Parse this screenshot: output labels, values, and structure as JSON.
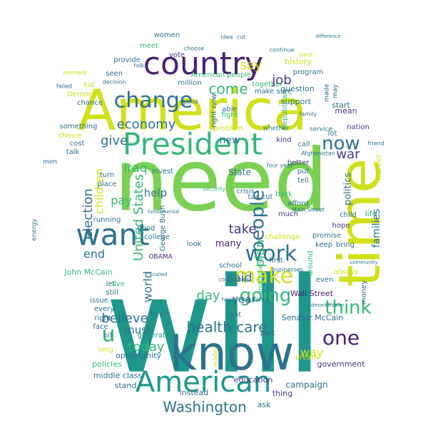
{
  "palette": {
    "purple": "#482173",
    "yellow": "#d0e11c",
    "green": "#7ad151",
    "teal": "#1f968b",
    "blue": "#2c728e",
    "mint": "#35b779",
    "navy": "#443983",
    "lime": "#a5db36"
  },
  "words": [
    {
      "text": "will",
      "color": "#1f968b"
    },
    {
      "text": "need",
      "color": "#7ad151"
    },
    {
      "text": "America",
      "color": "#d0e11c"
    },
    {
      "text": "know",
      "color": "#2c728e"
    },
    {
      "text": "country",
      "color": "#482173"
    },
    {
      "text": "time",
      "color": "#d0e11c"
    },
    {
      "text": "President",
      "color": "#35b779"
    },
    {
      "text": "American",
      "color": "#1f968b"
    },
    {
      "text": "want",
      "color": "#2c728e"
    },
    {
      "text": "make",
      "color": "#d0e11c"
    },
    {
      "text": "work",
      "color": "#2c728e"
    },
    {
      "text": "change",
      "color": "#2c728e"
    },
    {
      "text": "going",
      "color": "#35b779"
    },
    {
      "text": "think",
      "color": "#35b779"
    },
    {
      "text": "now",
      "color": "#2c728e"
    },
    {
      "text": "one",
      "color": "#482173"
    },
    {
      "text": "people",
      "color": "#2c728e"
    },
    {
      "text": "economy",
      "color": "#2c728e"
    },
    {
      "text": "come",
      "color": "#35b779"
    },
    {
      "text": "job",
      "color": "#443983"
    },
    {
      "text": "say",
      "color": "#d0e11c"
    },
    {
      "text": "health care",
      "color": "#2c728e"
    },
    {
      "text": "Washington",
      "color": "#2c728e"
    },
    {
      "text": "United States",
      "color": "#35b779"
    },
    {
      "text": "believe",
      "color": "#2c728e"
    },
    {
      "text": "today",
      "color": "#35b779"
    },
    {
      "text": "give",
      "color": "#2c728e"
    },
    {
      "text": "take",
      "color": "#443983"
    },
    {
      "text": "plan",
      "color": "#35b779"
    },
    {
      "text": "day",
      "color": "#35b779"
    },
    {
      "text": "war",
      "color": "#443983"
    },
    {
      "text": "Iraq",
      "color": "#35b779"
    },
    {
      "text": "election",
      "color": "#2c728e"
    },
    {
      "text": "children",
      "color": "#d0e11c"
    },
    {
      "text": "said",
      "color": "#2c728e"
    },
    {
      "text": "u",
      "color": "#35b779"
    },
    {
      "text": "help",
      "color": "#2c728e"
    },
    {
      "text": "pay",
      "color": "#35b779"
    },
    {
      "text": "end",
      "color": "#2c728e"
    },
    {
      "text": "world",
      "color": "#2c728e"
    },
    {
      "text": "way",
      "color": "#d0e11c"
    },
    {
      "text": "year",
      "color": "#2c728e"
    },
    {
      "text": "must",
      "color": "#2c728e"
    },
    {
      "text": "many",
      "color": "#482173"
    },
    {
      "text": "families",
      "color": "#2c728e"
    },
    {
      "text": "politics",
      "color": "#2c728e"
    },
    {
      "text": "Wall Street",
      "color": "#482173"
    },
    {
      "text": "John McCain",
      "color": "#35b779"
    },
    {
      "text": "Senator McCain",
      "color": "#2c728e"
    },
    {
      "text": "American people",
      "color": "#35b779"
    },
    {
      "text": "George Bush",
      "color": "#2c728e"
    },
    {
      "text": "middle class",
      "color": "#2c728e"
    },
    {
      "text": "policies",
      "color": "#35b779"
    },
    {
      "text": "campaign",
      "color": "#2c728e"
    },
    {
      "text": "education",
      "color": "#443983"
    },
    {
      "text": "government",
      "color": "#443983"
    },
    {
      "text": "opportunity",
      "color": "#2c728e"
    },
    {
      "text": "generation",
      "color": "#1f968b"
    },
    {
      "text": "instead",
      "color": "#2c728e"
    },
    {
      "text": "thing",
      "color": "#443983"
    },
    {
      "text": "stand",
      "color": "#2c728e"
    },
    {
      "text": "ask",
      "color": "#2c728e"
    },
    {
      "text": "mean",
      "color": "#443983"
    },
    {
      "text": "start",
      "color": "#2c728e"
    },
    {
      "text": "question",
      "color": "#2c728e"
    },
    {
      "text": "support",
      "color": "#2c728e"
    },
    {
      "text": "history",
      "color": "#d0e11c"
    },
    {
      "text": "program",
      "color": "#2c728e"
    },
    {
      "text": "together",
      "color": "#35b779"
    },
    {
      "text": "women",
      "color": "#2c728e"
    },
    {
      "text": "vote",
      "color": "#443983"
    },
    {
      "text": "meet",
      "color": "#35b779"
    },
    {
      "text": "kid",
      "color": "#d0e11c"
    },
    {
      "text": "seen",
      "color": "#2c728e"
    },
    {
      "text": "provide",
      "color": "#2c728e"
    },
    {
      "text": "million",
      "color": "#2c728e"
    },
    {
      "text": "Democrat",
      "color": "#d0e11c"
    },
    {
      "text": "chance",
      "color": "#2c728e"
    },
    {
      "text": "something",
      "color": "#2c728e"
    },
    {
      "text": "choice",
      "color": "#d0e11c"
    },
    {
      "text": "cost",
      "color": "#2c728e"
    },
    {
      "text": "talk",
      "color": "#2c728e"
    },
    {
      "text": "able",
      "color": "#2c728e"
    },
    {
      "text": "fight",
      "color": "#35b779"
    },
    {
      "text": "problem",
      "color": "#d0e11c"
    },
    {
      "text": "right now",
      "color": "#2c728e"
    },
    {
      "text": "make sure",
      "color": "#2c728e"
    },
    {
      "text": "Republican",
      "color": "#35b779"
    },
    {
      "text": "nation",
      "color": "#443983"
    },
    {
      "text": "lot",
      "color": "#2c728e"
    },
    {
      "text": "kind",
      "color": "#443983"
    },
    {
      "text": "call",
      "color": "#2c728e"
    },
    {
      "text": "better",
      "color": "#443983"
    },
    {
      "text": "put",
      "color": "#2c728e"
    },
    {
      "text": "tell",
      "color": "#2c728e"
    },
    {
      "text": "back",
      "color": "#35b779"
    },
    {
      "text": "afford",
      "color": "#2c728e"
    },
    {
      "text": "crisis",
      "color": "#2c728e"
    },
    {
      "text": "tax cut",
      "color": "#2c728e"
    },
    {
      "text": "much",
      "color": "#443983"
    },
    {
      "text": "challenge",
      "color": "#d0e11c"
    },
    {
      "text": "promise",
      "color": "#2c728e"
    },
    {
      "text": "keep",
      "color": "#2c728e"
    },
    {
      "text": "bring",
      "color": "#2c728e"
    },
    {
      "text": "hope",
      "color": "#443983"
    },
    {
      "text": "even",
      "color": "#2c728e"
    },
    {
      "text": "always",
      "color": "#d0e11c"
    },
    {
      "text": "first",
      "color": "#2c728e"
    },
    {
      "text": "got",
      "color": "#2c728e"
    },
    {
      "text": "school",
      "color": "#2c728e"
    },
    {
      "text": "around",
      "color": "#35b779"
    },
    {
      "text": "live",
      "color": "#35b779"
    },
    {
      "text": "still",
      "color": "#2c728e"
    },
    {
      "text": "let",
      "color": "#2c728e"
    },
    {
      "text": "issue",
      "color": "#2c728e"
    },
    {
      "text": "every",
      "color": "#2c728e"
    },
    {
      "text": "right",
      "color": "#2c728e"
    },
    {
      "text": "face",
      "color": "#2c728e"
    },
    {
      "text": "oil",
      "color": "#2c728e"
    },
    {
      "text": "long",
      "color": "#d0e11c"
    },
    {
      "text": "done",
      "color": "#2c728e"
    },
    {
      "text": "look",
      "color": "#2c728e"
    },
    {
      "text": "good",
      "color": "#2c728e"
    },
    {
      "text": "running",
      "color": "#2c728e"
    },
    {
      "text": "college",
      "color": "#2c728e"
    },
    {
      "text": "place",
      "color": "#2c728e"
    },
    {
      "text": "turn",
      "color": "#2c728e"
    },
    {
      "text": "invest",
      "color": "#2c728e"
    },
    {
      "text": "OBAMA",
      "color": "#482173"
    },
    {
      "text": "new",
      "color": "#2c728e"
    },
    {
      "text": "dream",
      "color": "#d0e11c"
    },
    {
      "text": "part",
      "color": "#2c728e"
    },
    {
      "text": "leader",
      "color": "#d0e11c"
    },
    {
      "text": "energy",
      "color": "#2c728e"
    },
    {
      "text": "men",
      "color": "#2c728e"
    },
    {
      "text": "worker",
      "color": "#d0e11c"
    },
    {
      "text": "life",
      "color": "#35b779"
    },
    {
      "text": "money",
      "color": "#2c728e"
    },
    {
      "text": "child",
      "color": "#2c728e"
    },
    {
      "text": "State",
      "color": "#2c728e"
    },
    {
      "text": "security",
      "color": "#35b779"
    },
    {
      "text": "understand",
      "color": "#35b779"
    },
    {
      "text": "Afghanistan",
      "color": "#2c728e"
    },
    {
      "text": "service",
      "color": "#2c728e"
    },
    {
      "text": "whether",
      "color": "#2c728e"
    },
    {
      "text": "made",
      "color": "#2c728e"
    },
    {
      "text": "may",
      "color": "#2c728e"
    },
    {
      "text": "family",
      "color": "#2c728e"
    },
    {
      "text": "four year",
      "color": "#2c728e"
    },
    {
      "text": "health insurance",
      "color": "#2c728e"
    },
    {
      "text": "companies",
      "color": "#2c728e"
    },
    {
      "text": "businesses",
      "color": "#2c728e"
    },
    {
      "text": "Main Street",
      "color": "#2c728e"
    },
    {
      "text": "Administration",
      "color": "#2c728e"
    },
    {
      "text": "community",
      "color": "#2c728e"
    },
    {
      "text": "friend",
      "color": "#2c728e"
    },
    {
      "text": "idea",
      "color": "#2c728e"
    },
    {
      "text": "cut",
      "color": "#2c728e"
    },
    {
      "text": "continue",
      "color": "#2c728e"
    },
    {
      "text": "hard",
      "color": "#d0e11c"
    },
    {
      "text": "folks",
      "color": "#2c728e"
    },
    {
      "text": "choose",
      "color": "#2c728e"
    },
    {
      "text": "moment",
      "color": "#d0e11c"
    },
    {
      "text": "failed",
      "color": "#2c728e"
    },
    {
      "text": "decision",
      "color": "#2c728e"
    },
    {
      "text": "spend",
      "color": "#2c728e"
    },
    {
      "text": "fundamental",
      "color": "#2c728e"
    },
    {
      "text": "called",
      "color": "#2c728e"
    },
    {
      "text": "difference",
      "color": "#2c728e"
    }
  ]
}
